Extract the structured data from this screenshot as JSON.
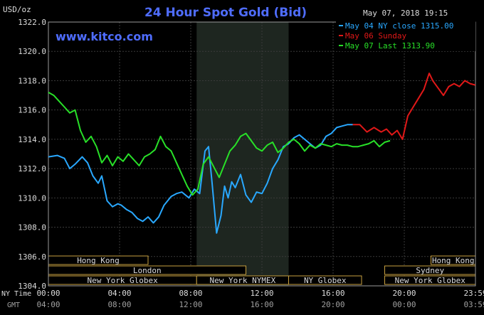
{
  "chart_data": {
    "type": "line",
    "title": "24 Hour Spot Gold (Bid)",
    "watermark": "www.kitco.com",
    "ylabel": "USD/oz",
    "date_text": "May 07, 2018 19:15",
    "ylim": [
      1304,
      1322
    ],
    "y_ticks": [
      "1322.0",
      "1320.0",
      "1318.0",
      "1316.0",
      "1314.0",
      "1312.0",
      "1310.0",
      "1308.0",
      "1306.0",
      "1304.0"
    ],
    "x_range_hours": [
      0,
      24
    ],
    "x_axis_ny_label": "NY Time",
    "x_axis_gmt_label": "GMT",
    "x_ticks_ny": [
      "00:00",
      "04:00",
      "08:00",
      "12:00",
      "16:00",
      "20:00",
      "23:59"
    ],
    "x_ticks_gmt": [
      "04:00",
      "08:00",
      "12:00",
      "16:00",
      "20:00",
      "00:00",
      "03:59"
    ],
    "shaded_region_hours": [
      8.33,
      13.5
    ],
    "legend": [
      {
        "label": "May 04 NY close 1315.00",
        "color": "#29a8ff"
      },
      {
        "label": "May 06 Sunday",
        "color": "#e01818"
      },
      {
        "label": "May 07 Last 1313.90",
        "color": "#28e028"
      }
    ],
    "sessions": [
      {
        "label": "Hong Kong",
        "start": 0,
        "end": 5.6,
        "row": 0
      },
      {
        "label": "London",
        "start": 0,
        "end": 11.1,
        "row": 1
      },
      {
        "label": "New York Globex",
        "start": 0,
        "end": 8.33,
        "row": 2
      },
      {
        "label": "New York NYMEX",
        "start": 8.33,
        "end": 13.5,
        "row": 2
      },
      {
        "label": "NY Globex",
        "start": 13.5,
        "end": 17.6,
        "row": 2
      },
      {
        "label": "Hong Kong",
        "start": 21.5,
        "end": 24,
        "row": 0
      },
      {
        "label": "Sydney",
        "start": 18.9,
        "end": 24,
        "row": 1
      },
      {
        "label": "New York Globex",
        "start": 18.9,
        "end": 24,
        "row": 2
      }
    ],
    "series": [
      {
        "name": "May 04 NY close 1315.00",
        "color": "#29a8ff",
        "x": [
          0,
          0.5,
          0.9,
          1.2,
          1.5,
          1.9,
          2.2,
          2.5,
          2.8,
          3.0,
          3.3,
          3.6,
          3.9,
          4.1,
          4.4,
          4.7,
          5.0,
          5.3,
          5.6,
          5.9,
          6.2,
          6.5,
          6.9,
          7.2,
          7.5,
          7.9,
          8.2,
          8.5,
          8.8,
          9.0,
          9.2,
          9.45,
          9.7,
          9.9,
          10.1,
          10.3,
          10.5,
          10.8,
          11.1,
          11.4,
          11.7,
          12.0,
          12.3,
          12.6,
          12.9,
          13.2,
          13.5,
          13.8,
          14.1,
          14.4,
          14.7,
          15.0,
          15.3,
          15.6,
          15.9,
          16.2,
          16.5,
          16.8,
          17.1
        ],
        "y": [
          1312.8,
          1312.9,
          1312.7,
          1312.0,
          1312.3,
          1312.8,
          1312.4,
          1311.5,
          1311.0,
          1311.5,
          1309.8,
          1309.4,
          1309.6,
          1309.5,
          1309.2,
          1309.0,
          1308.6,
          1308.4,
          1308.7,
          1308.3,
          1308.7,
          1309.5,
          1310.1,
          1310.3,
          1310.4,
          1310.0,
          1310.6,
          1310.3,
          1313.2,
          1313.5,
          1311.0,
          1307.6,
          1308.8,
          1310.8,
          1310.0,
          1311.1,
          1310.7,
          1311.6,
          1310.2,
          1309.7,
          1310.4,
          1310.3,
          1311.0,
          1312.0,
          1312.6,
          1313.5,
          1313.7,
          1314.1,
          1314.3,
          1314.0,
          1313.7,
          1313.4,
          1313.6,
          1314.2,
          1314.4,
          1314.8,
          1314.9,
          1315.0,
          1315.0
        ]
      },
      {
        "name": "May 06 Sunday",
        "color": "#e01818",
        "x": [
          17.1,
          17.5,
          17.9,
          18.3,
          18.7,
          19.0,
          19.3,
          19.6,
          19.9,
          20.2,
          20.5,
          20.8,
          21.1,
          21.4,
          21.6,
          21.9,
          22.2,
          22.5,
          22.8,
          23.1,
          23.4,
          23.7,
          23.99
        ],
        "y": [
          1315.0,
          1315.0,
          1314.5,
          1314.8,
          1314.5,
          1314.7,
          1314.3,
          1314.6,
          1314.0,
          1315.6,
          1316.2,
          1316.8,
          1317.4,
          1318.5,
          1318.0,
          1317.5,
          1317.0,
          1317.6,
          1317.8,
          1317.6,
          1318.0,
          1317.8,
          1317.7
        ]
      },
      {
        "name": "May 07 Last 1313.90",
        "color": "#28e028",
        "x": [
          0,
          0.3,
          0.6,
          0.9,
          1.2,
          1.5,
          1.8,
          2.1,
          2.4,
          2.7,
          3.0,
          3.3,
          3.6,
          3.9,
          4.2,
          4.5,
          4.8,
          5.1,
          5.4,
          5.7,
          6.0,
          6.3,
          6.6,
          6.9,
          7.2,
          7.5,
          7.8,
          8.1,
          8.4,
          8.7,
          9.0,
          9.3,
          9.6,
          9.9,
          10.2,
          10.5,
          10.8,
          11.1,
          11.4,
          11.7,
          12.0,
          12.3,
          12.6,
          12.9,
          13.2,
          13.5,
          13.8,
          14.1,
          14.4,
          14.7,
          15.0,
          15.3,
          15.6,
          15.9,
          16.2,
          16.5,
          16.8,
          17.1,
          17.4,
          17.7,
          18.0,
          18.3,
          18.6,
          18.9,
          19.2
        ],
        "y": [
          1317.2,
          1317.0,
          1316.6,
          1316.2,
          1315.8,
          1316.0,
          1314.6,
          1313.8,
          1314.2,
          1313.5,
          1312.4,
          1312.9,
          1312.2,
          1312.8,
          1312.5,
          1313.0,
          1312.6,
          1312.2,
          1312.8,
          1313.0,
          1313.3,
          1314.2,
          1313.5,
          1313.2,
          1312.4,
          1311.6,
          1310.8,
          1310.2,
          1310.6,
          1312.3,
          1312.8,
          1312.1,
          1311.4,
          1312.3,
          1313.2,
          1313.6,
          1314.2,
          1314.4,
          1313.9,
          1313.4,
          1313.2,
          1313.6,
          1313.8,
          1313.1,
          1313.4,
          1313.8,
          1314.0,
          1313.7,
          1313.2,
          1313.6,
          1313.4,
          1313.7,
          1313.6,
          1313.5,
          1313.7,
          1313.6,
          1313.6,
          1313.5,
          1313.5,
          1313.6,
          1313.7,
          1313.9,
          1313.5,
          1313.8,
          1313.9
        ]
      }
    ]
  }
}
